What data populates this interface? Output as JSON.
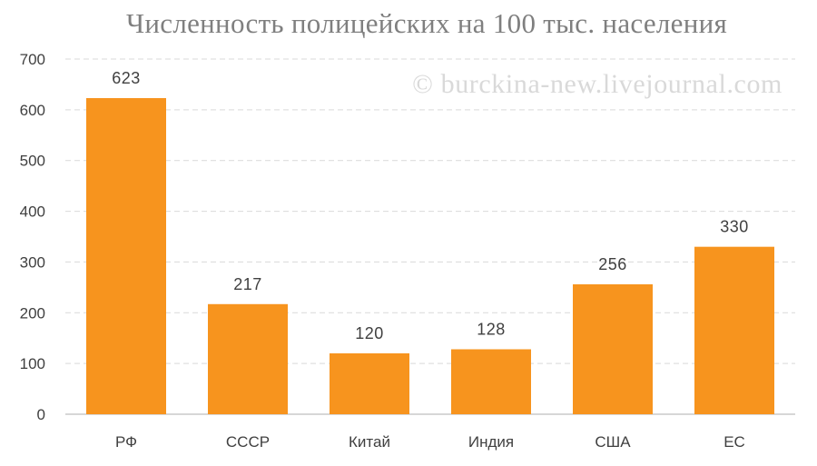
{
  "chart_data": {
    "type": "bar",
    "title": "Численность полицейских на 100 тыс. населения",
    "watermark": "© burckina-new.livejournal.com",
    "categories": [
      "РФ",
      "СССР",
      "Китай",
      "Индия",
      "США",
      "ЕС"
    ],
    "values": [
      623,
      217,
      120,
      128,
      256,
      330
    ],
    "data_labels": [
      "623",
      "217",
      "120",
      "128",
      "256",
      "330"
    ],
    "y_ticks": [
      "0",
      "100",
      "200",
      "300",
      "400",
      "500",
      "600",
      "700"
    ],
    "ylim": [
      0,
      700
    ],
    "grid": "horizontal-dashed",
    "xlabel": "",
    "ylabel": "",
    "colors": {
      "bar": "#F7941E",
      "grid": "#d9d9d9",
      "axis": "#bfbfbf",
      "text": "#404040",
      "title": "#7f7f7f"
    }
  }
}
